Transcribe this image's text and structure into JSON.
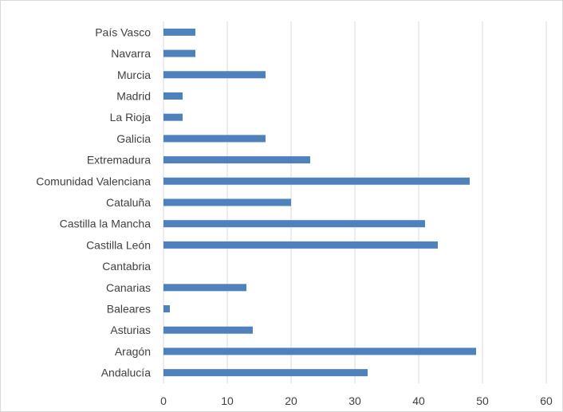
{
  "chart_data": {
    "type": "bar",
    "orientation": "horizontal",
    "title": "",
    "xlabel": "",
    "ylabel": "",
    "categories": [
      "País Vasco",
      "Navarra",
      "Murcia",
      "Madrid",
      "La Rioja",
      "Galicia",
      "Extremadura",
      "Comunidad Valenciana",
      "Cataluña",
      "Castilla la Mancha",
      "Castilla León",
      "Cantabria",
      "Canarias",
      "Baleares",
      "Asturias",
      "Aragón",
      "Andalucía"
    ],
    "values": [
      5,
      5,
      16,
      3,
      3,
      16,
      23,
      48,
      20,
      41,
      43,
      0,
      13,
      1,
      14,
      49,
      32
    ],
    "xlim": [
      0,
      60
    ],
    "xticks": [
      "0",
      "10",
      "20",
      "30",
      "40",
      "50",
      "60"
    ],
    "grid": "vertical",
    "legend": "none",
    "bar_color": "#4f81bd",
    "grid_color": "#d9d9d9"
  }
}
